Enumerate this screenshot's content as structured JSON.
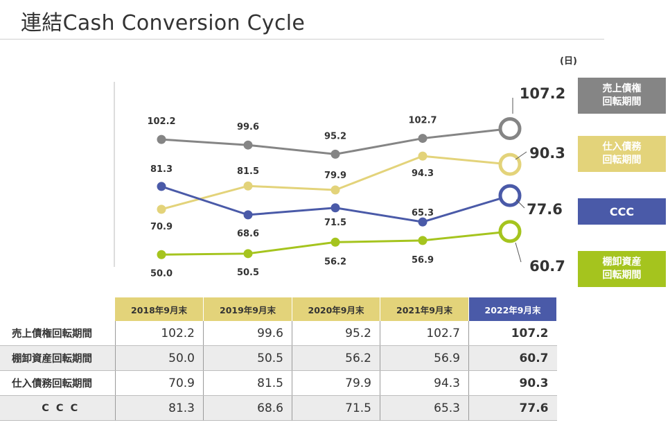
{
  "page": {
    "title": "連結Cash Conversion Cycle"
  },
  "chart_data": {
    "type": "line",
    "unit": "(日)",
    "categories": [
      "2018年9月末",
      "2019年9月末",
      "2020年9月末",
      "2021年9月末",
      "2022年9月末"
    ],
    "ylim": [
      40,
      115
    ],
    "grid": false,
    "series": [
      {
        "name": "売上債権\n回転期間",
        "color": "#858585",
        "values": [
          102.2,
          99.6,
          95.2,
          102.7,
          107.2
        ]
      },
      {
        "name": "仕入債務\n回転期間",
        "color": "#e3d37a",
        "values": [
          70.9,
          81.5,
          79.9,
          94.3,
          90.3
        ]
      },
      {
        "name": "CCC",
        "color": "#4a5aa8",
        "values": [
          81.3,
          68.6,
          71.5,
          65.3,
          77.6
        ]
      },
      {
        "name": "棚卸資産\n回転期間",
        "color": "#a5c41e",
        "values": [
          50.0,
          50.5,
          56.2,
          56.9,
          60.7
        ]
      }
    ],
    "data_labels": [
      [
        "102.2",
        "99.6",
        "95.2",
        "102.7",
        "107.2"
      ],
      [
        "70.9",
        "81.5",
        "79.9",
        "94.3",
        "90.3"
      ],
      [
        "81.3",
        "68.6",
        "71.5",
        "65.3",
        "77.6"
      ],
      [
        "50.0",
        "50.5",
        "56.2",
        "56.9",
        "60.7"
      ]
    ]
  },
  "table": {
    "headers": [
      "2018年9月末",
      "2019年9月末",
      "2020年9月末",
      "2021年9月末",
      "2022年9月末"
    ],
    "rows": [
      {
        "label": "売上債権回転期間",
        "values": [
          "102.2",
          "99.6",
          "95.2",
          "102.7",
          "107.2"
        ]
      },
      {
        "label": "棚卸資産回転期間",
        "values": [
          "50.0",
          "50.5",
          "56.2",
          "56.9",
          "60.7"
        ]
      },
      {
        "label": "仕入債務回転期間",
        "values": [
          "70.9",
          "81.5",
          "79.9",
          "94.3",
          "90.3"
        ]
      },
      {
        "label": "CCC",
        "values": [
          "81.3",
          "68.6",
          "71.5",
          "65.3",
          "77.6"
        ]
      }
    ]
  }
}
